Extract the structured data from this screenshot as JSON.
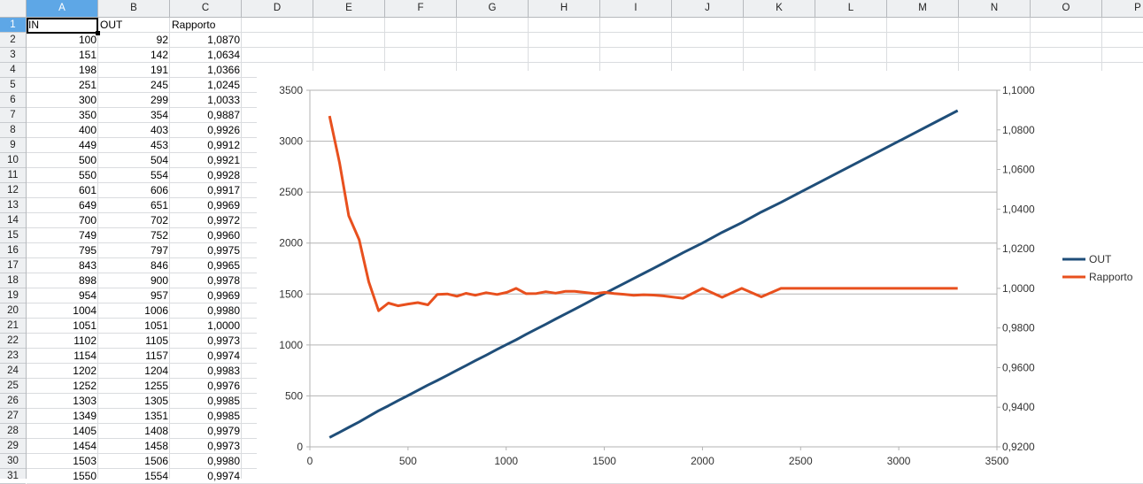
{
  "sheet": {
    "columns": [
      "A",
      "B",
      "C",
      "D",
      "E",
      "F",
      "G",
      "H",
      "I",
      "J",
      "K",
      "L",
      "M",
      "N",
      "O",
      "P"
    ],
    "selected_column": "A",
    "selected_row": "1",
    "header_row": [
      "IN",
      "OUT",
      "Rapporto"
    ],
    "rows": [
      {
        "n": "2",
        "a": "100",
        "b": "92",
        "c": "1,0870"
      },
      {
        "n": "3",
        "a": "151",
        "b": "142",
        "c": "1,0634"
      },
      {
        "n": "4",
        "a": "198",
        "b": "191",
        "c": "1,0366"
      },
      {
        "n": "5",
        "a": "251",
        "b": "245",
        "c": "1,0245"
      },
      {
        "n": "6",
        "a": "300",
        "b": "299",
        "c": "1,0033"
      },
      {
        "n": "7",
        "a": "350",
        "b": "354",
        "c": "0,9887"
      },
      {
        "n": "8",
        "a": "400",
        "b": "403",
        "c": "0,9926"
      },
      {
        "n": "9",
        "a": "449",
        "b": "453",
        "c": "0,9912"
      },
      {
        "n": "10",
        "a": "500",
        "b": "504",
        "c": "0,9921"
      },
      {
        "n": "11",
        "a": "550",
        "b": "554",
        "c": "0,9928"
      },
      {
        "n": "12",
        "a": "601",
        "b": "606",
        "c": "0,9917"
      },
      {
        "n": "13",
        "a": "649",
        "b": "651",
        "c": "0,9969"
      },
      {
        "n": "14",
        "a": "700",
        "b": "702",
        "c": "0,9972"
      },
      {
        "n": "15",
        "a": "749",
        "b": "752",
        "c": "0,9960"
      },
      {
        "n": "16",
        "a": "795",
        "b": "797",
        "c": "0,9975"
      },
      {
        "n": "17",
        "a": "843",
        "b": "846",
        "c": "0,9965"
      },
      {
        "n": "18",
        "a": "898",
        "b": "900",
        "c": "0,9978"
      },
      {
        "n": "19",
        "a": "954",
        "b": "957",
        "c": "0,9969"
      },
      {
        "n": "20",
        "a": "1004",
        "b": "1006",
        "c": "0,9980"
      },
      {
        "n": "21",
        "a": "1051",
        "b": "1051",
        "c": "1,0000"
      },
      {
        "n": "22",
        "a": "1102",
        "b": "1105",
        "c": "0,9973"
      },
      {
        "n": "23",
        "a": "1154",
        "b": "1157",
        "c": "0,9974"
      },
      {
        "n": "24",
        "a": "1202",
        "b": "1204",
        "c": "0,9983"
      },
      {
        "n": "25",
        "a": "1252",
        "b": "1255",
        "c": "0,9976"
      },
      {
        "n": "26",
        "a": "1303",
        "b": "1305",
        "c": "0,9985"
      },
      {
        "n": "27",
        "a": "1349",
        "b": "1351",
        "c": "0,9985"
      },
      {
        "n": "28",
        "a": "1405",
        "b": "1408",
        "c": "0,9979"
      },
      {
        "n": "29",
        "a": "1454",
        "b": "1458",
        "c": "0,9973"
      },
      {
        "n": "30",
        "a": "1503",
        "b": "1506",
        "c": "0,9980"
      },
      {
        "n": "31",
        "a": "1550",
        "b": "1554",
        "c": "0,9974"
      }
    ]
  },
  "chart_data": {
    "type": "line",
    "title": "",
    "xlabel": "",
    "ylabel": "",
    "xlim": [
      0,
      3500
    ],
    "ylim": [
      0,
      3500
    ],
    "y2lim": [
      0.92,
      1.1
    ],
    "x_ticks": [
      "0",
      "500",
      "1000",
      "1500",
      "2000",
      "2500",
      "3000",
      "3500"
    ],
    "y_ticks": [
      "0",
      "500",
      "1000",
      "1500",
      "2000",
      "2500",
      "3000",
      "3500"
    ],
    "y2_ticks": [
      "0,9200",
      "0,9400",
      "0,9600",
      "0,9800",
      "1,0000",
      "1,0200",
      "1,0400",
      "1,0600",
      "1,0800",
      "1,1000"
    ],
    "grid": true,
    "legend": "right",
    "series": [
      {
        "name": "OUT",
        "axis": "left",
        "color": "#1f4e79",
        "points": [
          [
            100,
            92
          ],
          [
            151,
            142
          ],
          [
            198,
            191
          ],
          [
            251,
            245
          ],
          [
            300,
            299
          ],
          [
            350,
            354
          ],
          [
            400,
            403
          ],
          [
            449,
            453
          ],
          [
            500,
            504
          ],
          [
            550,
            554
          ],
          [
            601,
            606
          ],
          [
            649,
            651
          ],
          [
            700,
            702
          ],
          [
            749,
            752
          ],
          [
            795,
            797
          ],
          [
            843,
            846
          ],
          [
            898,
            900
          ],
          [
            954,
            957
          ],
          [
            1004,
            1006
          ],
          [
            1051,
            1051
          ],
          [
            1102,
            1105
          ],
          [
            1154,
            1157
          ],
          [
            1202,
            1204
          ],
          [
            1252,
            1255
          ],
          [
            1303,
            1305
          ],
          [
            1349,
            1351
          ],
          [
            1405,
            1408
          ],
          [
            1454,
            1458
          ],
          [
            1503,
            1506
          ],
          [
            1550,
            1554
          ],
          [
            1600,
            1603
          ],
          [
            1650,
            1653
          ],
          [
            1700,
            1702
          ],
          [
            1750,
            1752
          ],
          [
            1800,
            1802
          ],
          [
            1850,
            1853
          ],
          [
            1900,
            1905
          ],
          [
            2000,
            2000
          ],
          [
            2100,
            2105
          ],
          [
            2200,
            2200
          ],
          [
            2300,
            2305
          ],
          [
            2400,
            2400
          ],
          [
            2500,
            2500
          ],
          [
            2600,
            2600
          ],
          [
            2700,
            2700
          ],
          [
            2800,
            2800
          ],
          [
            2900,
            2900
          ],
          [
            3000,
            3000
          ],
          [
            3100,
            3100
          ],
          [
            3200,
            3200
          ],
          [
            3300,
            3300
          ]
        ]
      },
      {
        "name": "Rapporto",
        "axis": "right",
        "color": "#e8501e",
        "points": [
          [
            100,
            1.087
          ],
          [
            151,
            1.0634
          ],
          [
            198,
            1.0366
          ],
          [
            251,
            1.0245
          ],
          [
            300,
            1.0033
          ],
          [
            350,
            0.9887
          ],
          [
            400,
            0.9926
          ],
          [
            449,
            0.9912
          ],
          [
            500,
            0.9921
          ],
          [
            550,
            0.9928
          ],
          [
            601,
            0.9917
          ],
          [
            649,
            0.9969
          ],
          [
            700,
            0.9972
          ],
          [
            749,
            0.996
          ],
          [
            795,
            0.9975
          ],
          [
            843,
            0.9965
          ],
          [
            898,
            0.9978
          ],
          [
            954,
            0.9969
          ],
          [
            1004,
            0.998
          ],
          [
            1051,
            1.0
          ],
          [
            1102,
            0.9973
          ],
          [
            1154,
            0.9974
          ],
          [
            1202,
            0.9983
          ],
          [
            1252,
            0.9976
          ],
          [
            1303,
            0.9985
          ],
          [
            1349,
            0.9985
          ],
          [
            1405,
            0.9979
          ],
          [
            1454,
            0.9973
          ],
          [
            1503,
            0.998
          ],
          [
            1550,
            0.9974
          ],
          [
            1600,
            0.997
          ],
          [
            1650,
            0.9965
          ],
          [
            1700,
            0.9968
          ],
          [
            1750,
            0.9966
          ],
          [
            1800,
            0.9962
          ],
          [
            1900,
            0.995
          ],
          [
            2000,
            1.0
          ],
          [
            2100,
            0.9955
          ],
          [
            2200,
            1.0
          ],
          [
            2300,
            0.9957
          ],
          [
            2400,
            1.0
          ],
          [
            2600,
            1.0
          ],
          [
            2800,
            1.0
          ],
          [
            3000,
            1.0
          ],
          [
            3300,
            1.0
          ]
        ]
      }
    ]
  }
}
